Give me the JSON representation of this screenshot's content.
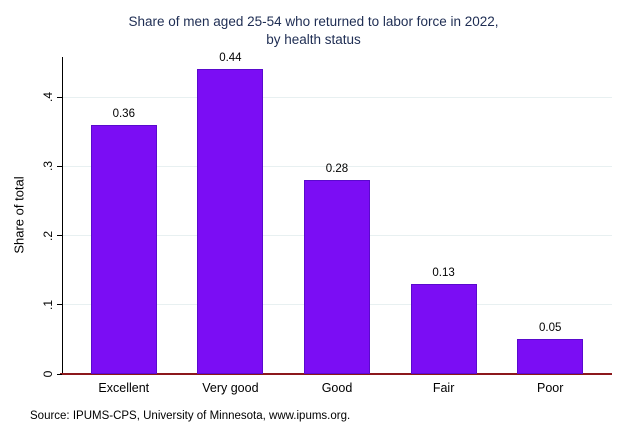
{
  "chart_data": {
    "type": "bar",
    "title": "Share of men aged 25-54 who returned to labor force in 2022, by health status",
    "title_lines": [
      "Share of men aged 25-54 who returned to labor force in 2022,",
      "by health status"
    ],
    "categories": [
      "Excellent",
      "Very good",
      "Good",
      "Fair",
      "Poor"
    ],
    "values": [
      0.36,
      0.44,
      0.28,
      0.13,
      0.05
    ],
    "data_labels": [
      "0.36",
      "0.44",
      "0.28",
      "0.13",
      "0.05"
    ],
    "xlabel": "",
    "ylabel": "Share of total",
    "ylim": [
      0,
      0.458
    ],
    "yticks": [
      0,
      0.1,
      0.2,
      0.3,
      0.4
    ],
    "ytick_labels": [
      "0",
      ".1",
      ".2",
      ".3",
      ".4"
    ],
    "grid": true,
    "legend": false,
    "source_note": "Source: IPUMS-CPS, University of Minnesota, www.ipums.org.",
    "colors": {
      "bar_fill": "#7B0DF4",
      "bar_border": "#5A0ACD",
      "gridline": "#E8F0F1",
      "baseline": "#8C181C",
      "axis": "#000000",
      "title_text": "#1E2D53",
      "text": "#000000"
    }
  }
}
